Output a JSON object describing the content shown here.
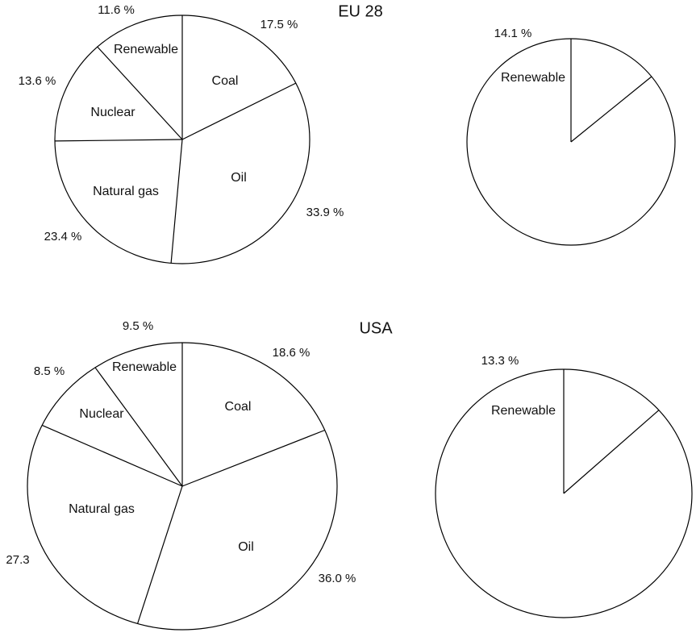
{
  "chart_data": [
    {
      "type": "pie",
      "title": "EU 28",
      "slices": [
        {
          "label": "Coal",
          "value": 17.5,
          "value_text": "17.5 %"
        },
        {
          "label": "Oil",
          "value": 33.9,
          "value_text": "33.9 %"
        },
        {
          "label": "Natural gas",
          "value": 23.4,
          "value_text": "23.4 %"
        },
        {
          "label": "Nuclear",
          "value": 13.6,
          "value_text": "13.6 %"
        },
        {
          "label": "Renewable",
          "value": 11.6,
          "value_text": "11.6 %"
        }
      ],
      "colors": {
        "fill": "#ffffff",
        "stroke": "#000000"
      }
    },
    {
      "type": "pie",
      "title": "",
      "slices": [
        {
          "label": "Renewable",
          "value": 14.1,
          "value_text": "14.1 %"
        },
        {
          "label": "",
          "value": 85.9,
          "value_text": ""
        }
      ],
      "colors": {
        "fill": "#ffffff",
        "stroke": "#000000"
      }
    },
    {
      "type": "pie",
      "title": "USA",
      "slices": [
        {
          "label": "Coal",
          "value": 18.6,
          "value_text": "18.6 %"
        },
        {
          "label": "Oil",
          "value": 36.0,
          "value_text": "36.0 %"
        },
        {
          "label": "Natural gas",
          "value": 27.3,
          "value_text": "27.3"
        },
        {
          "label": "Nuclear",
          "value": 8.5,
          "value_text": "8.5 %"
        },
        {
          "label": "Renewable",
          "value": 9.5,
          "value_text": "9.5 %"
        }
      ],
      "colors": {
        "fill": "#ffffff",
        "stroke": "#000000"
      }
    },
    {
      "type": "pie",
      "title": "",
      "slices": [
        {
          "label": "Renewable",
          "value": 13.3,
          "value_text": "13.3 %"
        },
        {
          "label": "",
          "value": 86.7,
          "value_text": ""
        }
      ],
      "colors": {
        "fill": "#ffffff",
        "stroke": "#000000"
      }
    }
  ]
}
